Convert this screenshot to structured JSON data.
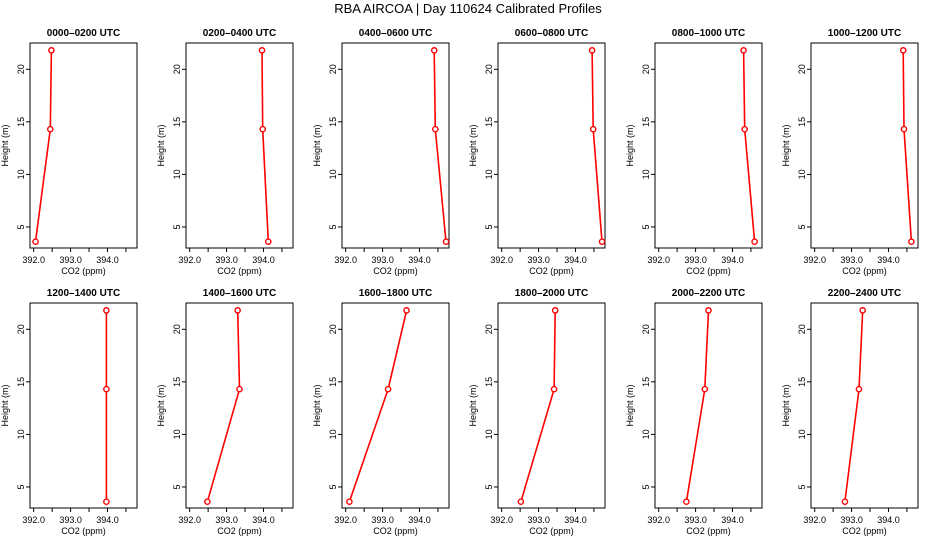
{
  "title": "RBA AIRCOA  |  Day 110624  Calibrated Profiles",
  "colors": {
    "series": "#ff0000",
    "axis": "#000000"
  },
  "chart_data": [
    {
      "type": "line",
      "title": "0000–0200 UTC",
      "xlabel": "CO2 (ppm)",
      "ylabel": "Height (m)",
      "xlim": [
        391.9,
        394.8
      ],
      "ylim": [
        3,
        22.5
      ],
      "xticks": [
        "392.0",
        "393.0",
        "394.0"
      ],
      "yticks": [
        "5",
        "10",
        "15",
        "20"
      ],
      "grid": false,
      "series": [
        {
          "x": [
            392.05,
            392.45,
            392.48
          ],
          "y": [
            3.6,
            14.3,
            21.8
          ]
        }
      ]
    },
    {
      "type": "line",
      "title": "0200–0400 UTC",
      "xlabel": "CO2 (ppm)",
      "ylabel": "Height (m)",
      "xlim": [
        391.9,
        394.8
      ],
      "ylim": [
        3,
        22.5
      ],
      "xticks": [
        "392.0",
        "393.0",
        "394.0"
      ],
      "yticks": [
        "5",
        "10",
        "15",
        "20"
      ],
      "grid": false,
      "series": [
        {
          "x": [
            394.13,
            393.98,
            393.96
          ],
          "y": [
            3.6,
            14.3,
            21.8
          ]
        }
      ]
    },
    {
      "type": "line",
      "title": "0400–0600 UTC",
      "xlabel": "CO2 (ppm)",
      "ylabel": "Height (m)",
      "xlim": [
        391.9,
        394.8
      ],
      "ylim": [
        3,
        22.5
      ],
      "xticks": [
        "392.0",
        "393.0",
        "394.0"
      ],
      "yticks": [
        "5",
        "10",
        "15",
        "20"
      ],
      "grid": false,
      "series": [
        {
          "x": [
            394.72,
            394.43,
            394.4
          ],
          "y": [
            3.6,
            14.3,
            21.8
          ]
        }
      ]
    },
    {
      "type": "line",
      "title": "0600–0800 UTC",
      "xlabel": "CO2 (ppm)",
      "ylabel": "Height (m)",
      "xlim": [
        391.9,
        394.8
      ],
      "ylim": [
        3,
        22.5
      ],
      "xticks": [
        "392.0",
        "393.0",
        "394.0"
      ],
      "yticks": [
        "5",
        "10",
        "15",
        "20"
      ],
      "grid": false,
      "series": [
        {
          "x": [
            394.72,
            394.48,
            394.45
          ],
          "y": [
            3.6,
            14.3,
            21.8
          ]
        }
      ]
    },
    {
      "type": "line",
      "title": "0800–1000 UTC",
      "xlabel": "CO2 (ppm)",
      "ylabel": "Height (m)",
      "xlim": [
        391.9,
        394.8
      ],
      "ylim": [
        3,
        22.5
      ],
      "xticks": [
        "392.0",
        "393.0",
        "394.0"
      ],
      "yticks": [
        "5",
        "10",
        "15",
        "20"
      ],
      "grid": false,
      "series": [
        {
          "x": [
            394.6,
            394.33,
            394.3
          ],
          "y": [
            3.6,
            14.3,
            21.8
          ]
        }
      ]
    },
    {
      "type": "line",
      "title": "1000–1200 UTC",
      "xlabel": "CO2 (ppm)",
      "ylabel": "Height (m)",
      "xlim": [
        391.9,
        394.8
      ],
      "ylim": [
        3,
        22.5
      ],
      "xticks": [
        "392.0",
        "393.0",
        "394.0"
      ],
      "yticks": [
        "5",
        "10",
        "15",
        "20"
      ],
      "grid": false,
      "series": [
        {
          "x": [
            394.62,
            394.42,
            394.4
          ],
          "y": [
            3.6,
            14.3,
            21.8
          ]
        }
      ]
    },
    {
      "type": "line",
      "title": "1200–1400 UTC",
      "xlabel": "CO2 (ppm)",
      "ylabel": "Height (m)",
      "xlim": [
        391.9,
        394.8
      ],
      "ylim": [
        3,
        22.5
      ],
      "xticks": [
        "392.0",
        "393.0",
        "394.0"
      ],
      "yticks": [
        "5",
        "10",
        "15",
        "20"
      ],
      "grid": false,
      "series": [
        {
          "x": [
            393.97,
            393.97,
            393.97
          ],
          "y": [
            3.6,
            14.3,
            21.8
          ]
        }
      ]
    },
    {
      "type": "line",
      "title": "1400–1600 UTC",
      "xlabel": "CO2 (ppm)",
      "ylabel": "Height (m)",
      "xlim": [
        391.9,
        394.8
      ],
      "ylim": [
        3,
        22.5
      ],
      "xticks": [
        "392.0",
        "393.0",
        "394.0"
      ],
      "yticks": [
        "5",
        "10",
        "15",
        "20"
      ],
      "grid": false,
      "series": [
        {
          "x": [
            392.48,
            393.35,
            393.3
          ],
          "y": [
            3.6,
            14.3,
            21.8
          ]
        }
      ]
    },
    {
      "type": "line",
      "title": "1600–1800 UTC",
      "xlabel": "CO2 (ppm)",
      "ylabel": "Height (m)",
      "xlim": [
        391.9,
        394.8
      ],
      "ylim": [
        3,
        22.5
      ],
      "xticks": [
        "392.0",
        "393.0",
        "394.0"
      ],
      "yticks": [
        "5",
        "10",
        "15",
        "20"
      ],
      "grid": false,
      "series": [
        {
          "x": [
            392.1,
            393.15,
            393.65
          ],
          "y": [
            3.6,
            14.3,
            21.8
          ]
        }
      ]
    },
    {
      "type": "line",
      "title": "1800–2000 UTC",
      "xlabel": "CO2 (ppm)",
      "ylabel": "Height (m)",
      "xlim": [
        391.9,
        394.8
      ],
      "ylim": [
        3,
        22.5
      ],
      "xticks": [
        "392.0",
        "393.0",
        "394.0"
      ],
      "yticks": [
        "5",
        "10",
        "15",
        "20"
      ],
      "grid": false,
      "series": [
        {
          "x": [
            392.52,
            393.42,
            393.45
          ],
          "y": [
            3.6,
            14.3,
            21.8
          ]
        }
      ]
    },
    {
      "type": "line",
      "title": "2000–2200 UTC",
      "xlabel": "CO2 (ppm)",
      "ylabel": "Height (m)",
      "xlim": [
        391.9,
        394.8
      ],
      "ylim": [
        3,
        22.5
      ],
      "xticks": [
        "392.0",
        "393.0",
        "394.0"
      ],
      "yticks": [
        "5",
        "10",
        "15",
        "20"
      ],
      "grid": false,
      "series": [
        {
          "x": [
            392.75,
            393.25,
            393.35
          ],
          "y": [
            3.6,
            14.3,
            21.8
          ]
        }
      ]
    },
    {
      "type": "line",
      "title": "2200–2400 UTC",
      "xlabel": "CO2 (ppm)",
      "ylabel": "Height (m)",
      "xlim": [
        391.9,
        394.8
      ],
      "ylim": [
        3,
        22.5
      ],
      "xticks": [
        "392.0",
        "393.0",
        "394.0"
      ],
      "yticks": [
        "5",
        "10",
        "15",
        "20"
      ],
      "grid": false,
      "series": [
        {
          "x": [
            392.82,
            393.2,
            393.3
          ],
          "y": [
            3.6,
            14.3,
            21.8
          ]
        }
      ]
    }
  ]
}
